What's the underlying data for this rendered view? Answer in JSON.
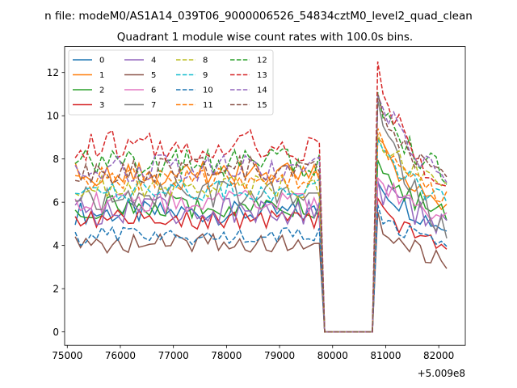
{
  "figure": {
    "suptitle": "n file: modeM0/AS1A14_039T06_9000006526_54834cztM0_level2_quad_clean"
  },
  "chart_data": {
    "type": "line",
    "title": "Quadrant 1 module wise count rates with 100.0s bins.",
    "xlabel": "",
    "ylabel": "",
    "x_offset_label": "+5.009e8",
    "xlim": [
      74950,
      82500
    ],
    "ylim": [
      -0.62,
      13.2
    ],
    "xticks": [
      75000,
      76000,
      77000,
      78000,
      79000,
      80000,
      81000,
      82000
    ],
    "yticks": [
      0,
      2,
      4,
      6,
      8,
      10,
      12
    ],
    "grid": false,
    "legend": {
      "placement": "top-left",
      "ncol": 4
    },
    "x_start": 75150,
    "x_step": 100,
    "gap": {
      "from": 79850,
      "to": 80750,
      "value": 0
    },
    "series": [
      {
        "name": "0",
        "color": "#1f77b4",
        "dash": false,
        "base": 5.5,
        "amp": 0.25,
        "peak": 7.2,
        "end": 4.8
      },
      {
        "name": "1",
        "color": "#ff7f0e",
        "dash": false,
        "base": 7.3,
        "amp": 0.25,
        "peak": 9.0,
        "end": 5.8
      },
      {
        "name": "2",
        "color": "#2ca02c",
        "dash": false,
        "base": 5.8,
        "amp": 0.25,
        "peak": 7.8,
        "end": 5.3
      },
      {
        "name": "3",
        "color": "#d62728",
        "dash": false,
        "base": 5.2,
        "amp": 0.2,
        "peak": 5.8,
        "end": 4.0
      },
      {
        "name": "4",
        "color": "#9467bd",
        "dash": false,
        "base": 5.6,
        "amp": 0.3,
        "peak": 6.8,
        "end": 5.0
      },
      {
        "name": "5",
        "color": "#8c564b",
        "dash": false,
        "base": 4.1,
        "amp": 0.2,
        "peak": 5.3,
        "end": 3.2
      },
      {
        "name": "6",
        "color": "#e377c2",
        "dash": false,
        "base": 6.0,
        "amp": 0.25,
        "peak": 7.2,
        "end": 5.3
      },
      {
        "name": "7",
        "color": "#7f7f7f",
        "dash": false,
        "base": 6.3,
        "amp": 0.3,
        "peak": 11.0,
        "end": 4.5
      },
      {
        "name": "8",
        "color": "#bcbd22",
        "dash": true,
        "base": 6.7,
        "amp": 0.25,
        "peak": 9.5,
        "end": 6.5
      },
      {
        "name": "9",
        "color": "#17becf",
        "dash": true,
        "base": 6.6,
        "amp": 0.25,
        "peak": 8.8,
        "end": 6.0
      },
      {
        "name": "10",
        "color": "#1f77b4",
        "dash": true,
        "base": 4.4,
        "amp": 0.2,
        "peak": 5.8,
        "end": 3.8
      },
      {
        "name": "11",
        "color": "#ff7f0e",
        "dash": true,
        "base": 7.1,
        "amp": 0.25,
        "peak": 9.2,
        "end": 6.2
      },
      {
        "name": "12",
        "color": "#2ca02c",
        "dash": true,
        "base": 7.8,
        "amp": 0.3,
        "peak": 10.8,
        "end": 7.2
      },
      {
        "name": "13",
        "color": "#d62728",
        "dash": true,
        "base": 8.6,
        "amp": 0.35,
        "peak": 12.6,
        "end": 6.5
      },
      {
        "name": "14",
        "color": "#9467bd",
        "dash": true,
        "base": 7.6,
        "amp": 0.3,
        "peak": 11.5,
        "end": 7.0
      },
      {
        "name": "15",
        "color": "#8c564b",
        "dash": true,
        "base": 7.5,
        "amp": 0.3,
        "peak": 10.5,
        "end": 6.8
      }
    ]
  }
}
